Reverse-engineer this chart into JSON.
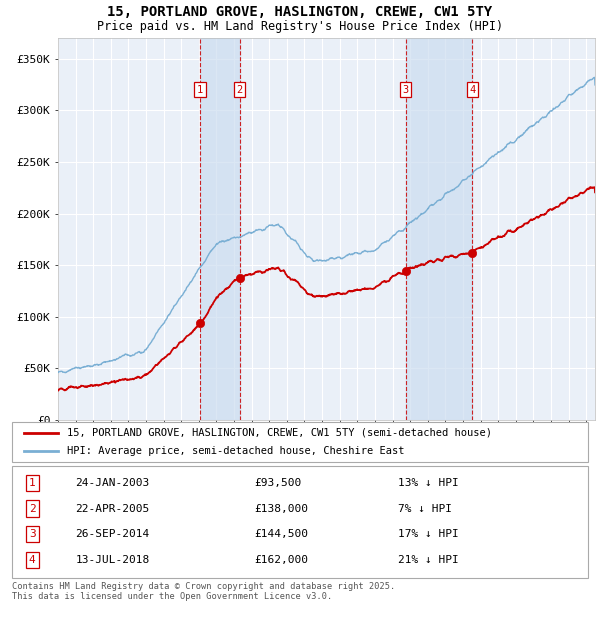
{
  "title": "15, PORTLAND GROVE, HASLINGTON, CREWE, CW1 5TY",
  "subtitle": "Price paid vs. HM Land Registry's House Price Index (HPI)",
  "legend_house": "15, PORTLAND GROVE, HASLINGTON, CREWE, CW1 5TY (semi-detached house)",
  "legend_hpi": "HPI: Average price, semi-detached house, Cheshire East",
  "footnote1": "Contains HM Land Registry data © Crown copyright and database right 2025.",
  "footnote2": "This data is licensed under the Open Government Licence v3.0.",
  "house_color": "#cc0000",
  "hpi_color": "#7aafd4",
  "background_color": "#ffffff",
  "plot_bg_color": "#eaf0f8",
  "grid_color": "#ffffff",
  "vline_color": "#cc0000",
  "vshade_color": "#ccddf0",
  "ylim": [
    0,
    370000
  ],
  "yticks": [
    0,
    50000,
    100000,
    150000,
    200000,
    250000,
    300000,
    350000
  ],
  "ytick_labels": [
    "£0",
    "£50K",
    "£100K",
    "£150K",
    "£200K",
    "£250K",
    "£300K",
    "£350K"
  ],
  "sales": [
    {
      "num": 1,
      "date_str": "24-JAN-2003",
      "price": 93500,
      "date_x": 2003.07,
      "hpi_note": "13% ↓ HPI"
    },
    {
      "num": 2,
      "date_str": "22-APR-2005",
      "price": 138000,
      "date_x": 2005.31,
      "hpi_note": "7% ↓ HPI"
    },
    {
      "num": 3,
      "date_str": "26-SEP-2014",
      "price": 144500,
      "date_x": 2014.74,
      "hpi_note": "17% ↓ HPI"
    },
    {
      "num": 4,
      "date_str": "13-JUL-2018",
      "price": 162000,
      "date_x": 2018.54,
      "hpi_note": "21% ↓ HPI"
    }
  ],
  "xmin": 1995.0,
  "xmax": 2025.5
}
